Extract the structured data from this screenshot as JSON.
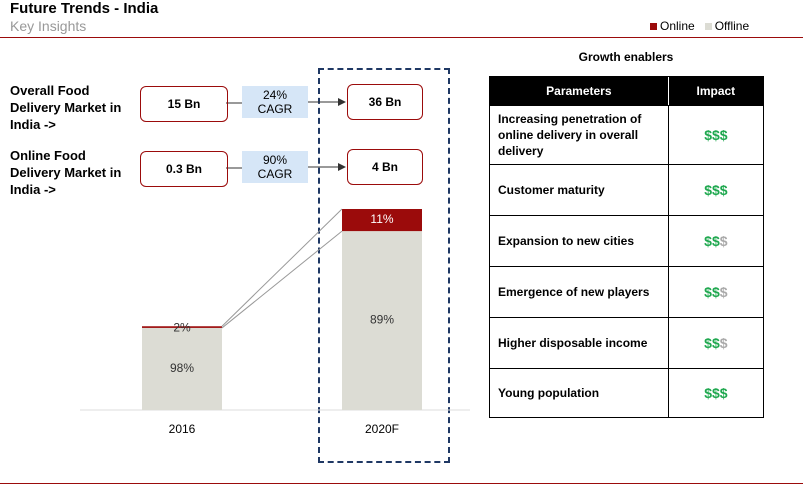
{
  "header": {
    "title": "Future Trends - India",
    "subtitle": "Key Insights"
  },
  "market": [
    {
      "label": "Overall Food Delivery Market in India ->",
      "values": [
        15,
        36
      ],
      "value_labels": [
        "15 Bn",
        "36 Bn"
      ],
      "growth": "24% CAGR"
    },
    {
      "label": "Online Food Delivery Market in India ->",
      "values": [
        0.3,
        4
      ],
      "value_labels": [
        "0.3 Bn",
        "4 Bn"
      ],
      "growth": "90% CAGR"
    }
  ],
  "chart_data": {
    "type": "stacked_bar",
    "categories": [
      "2016",
      "2020F"
    ],
    "series": [
      {
        "name": "Online",
        "color": "#9b0b0b",
        "values": [
          2,
          11
        ],
        "value_labels": [
          "2%",
          "11%"
        ]
      },
      {
        "name": "Offline",
        "color": "#dcdcd4",
        "values": [
          98,
          89
        ],
        "value_labels": [
          "98%",
          "89%"
        ]
      }
    ]
  },
  "table": {
    "title": "Growth enablers",
    "columns": [
      "Parameters",
      "Impact"
    ],
    "rows": [
      {
        "parameter": "Increasing penetration of online delivery in overall delivery",
        "impact": {
          "green": "$$$"
        }
      },
      {
        "parameter": "Customer maturity",
        "impact": {
          "green": "$$$"
        }
      },
      {
        "parameter": "Expansion to new cities",
        "impact": {
          "green": "$$",
          "grey": "$"
        }
      },
      {
        "parameter": "Emergence of new players",
        "impact": {
          "green": "$$",
          "grey": "$"
        }
      },
      {
        "parameter": "Higher disposable income",
        "impact": {
          "green": "$$",
          "grey": "$"
        }
      },
      {
        "parameter": "Young population",
        "impact": {
          "green": "$$$"
        }
      }
    ]
  }
}
